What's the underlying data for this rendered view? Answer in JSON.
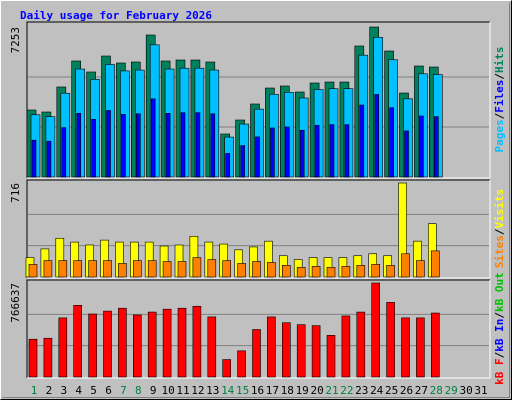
{
  "chart_data": [
    {
      "type": "bar",
      "title": "Daily usage for February 2026",
      "separator": "/",
      "categories": [
        "1",
        "2",
        "3",
        "4",
        "5",
        "6",
        "7",
        "8",
        "9",
        "10",
        "11",
        "12",
        "13",
        "14",
        "15",
        "16",
        "17",
        "18",
        "19",
        "20",
        "21",
        "22",
        "23",
        "24",
        "25",
        "26",
        "27",
        "28",
        "29",
        "30",
        "31"
      ],
      "category_colors": [
        "#008040",
        "#000000",
        "#000000",
        "#000000",
        "#000000",
        "#000000",
        "#008040",
        "#008040",
        "#000000",
        "#000000",
        "#000000",
        "#000000",
        "#000000",
        "#008040",
        "#008040",
        "#000000",
        "#000000",
        "#000000",
        "#000000",
        "#000000",
        "#008040",
        "#008040",
        "#000000",
        "#000000",
        "#000000",
        "#000000",
        "#000000",
        "#008040",
        "#008040",
        "#000000",
        "#000000"
      ],
      "ylim": [
        0,
        7253
      ],
      "yticks": [
        7253
      ],
      "series": [
        {
          "name": "Hits",
          "color": "#00805c",
          "values": [
            3239,
            3143,
            4352,
            5609,
            5077,
            5850,
            5512,
            5560,
            6866,
            5609,
            5657,
            5657,
            5560,
            2079,
            2756,
            3530,
            4303,
            4400,
            4110,
            4545,
            4593,
            4593,
            6334,
            7253,
            6092,
            4061,
            5367,
            5318,
            null,
            null,
            null
          ]
        },
        {
          "name": "Pages",
          "color": "#00c0ff",
          "values": [
            3010,
            2920,
            4050,
            5220,
            4720,
            5440,
            5130,
            5170,
            6390,
            5220,
            5260,
            5260,
            5170,
            1930,
            2560,
            3280,
            4000,
            4090,
            3820,
            4230,
            4270,
            4270,
            5890,
            6750,
            5670,
            3780,
            4990,
            4950,
            null,
            null,
            null
          ]
        },
        {
          "name": "Files",
          "color": "#0000ff",
          "values": [
            1780,
            1730,
            2390,
            3080,
            2790,
            3220,
            3030,
            3060,
            3780,
            3080,
            3110,
            3110,
            3060,
            1140,
            1520,
            1940,
            2370,
            2420,
            2260,
            2500,
            2530,
            2530,
            3480,
            3990,
            3350,
            2230,
            2950,
            2920,
            null,
            null,
            null
          ]
        }
      ],
      "legend_order": [
        1,
        2,
        0
      ]
    },
    {
      "type": "bar",
      "ylim": [
        0,
        716
      ],
      "yticks": [
        716
      ],
      "series": [
        {
          "name": "Visits",
          "color": "#ffff00",
          "values": [
            148,
            214,
            295,
            266,
            244,
            281,
            266,
            266,
            266,
            236,
            244,
            310,
            266,
            251,
            207,
            229,
            273,
            162,
            133,
            148,
            148,
            148,
            162,
            177,
            162,
            716,
            273,
            406,
            null,
            null,
            null
          ]
        },
        {
          "name": "Sites",
          "color": "#ff8000",
          "values": [
            96,
            125,
            125,
            125,
            125,
            125,
            103,
            125,
            125,
            118,
            118,
            148,
            133,
            125,
            103,
            118,
            111,
            89,
            74,
            81,
            74,
            81,
            89,
            96,
            89,
            177,
            125,
            199,
            null,
            null,
            null
          ]
        }
      ],
      "legend_order": [
        1,
        0
      ]
    },
    {
      "type": "bar",
      "ylim": [
        0,
        766637
      ],
      "yticks": [
        766637
      ],
      "series": [
        {
          "name": "kB F",
          "color": "#ff0000",
          "values": [
            308217,
            316120,
            482083,
            584822,
            513695,
            537404,
            561113,
            505792,
            529501,
            553210,
            561113,
            576919,
            489986,
            142254,
            213381,
            387247,
            489986,
            442568,
            426762,
            418859,
            339829,
            497889,
            529501,
            766637,
            608531,
            482083,
            482083,
            521598,
            null,
            null,
            null
          ]
        }
      ],
      "extra_legend": [
        {
          "name": "kB In",
          "color": "#0000ff"
        },
        {
          "name": "kB Out",
          "color": "#00c000"
        }
      ],
      "legend_order": [
        0
      ]
    }
  ]
}
